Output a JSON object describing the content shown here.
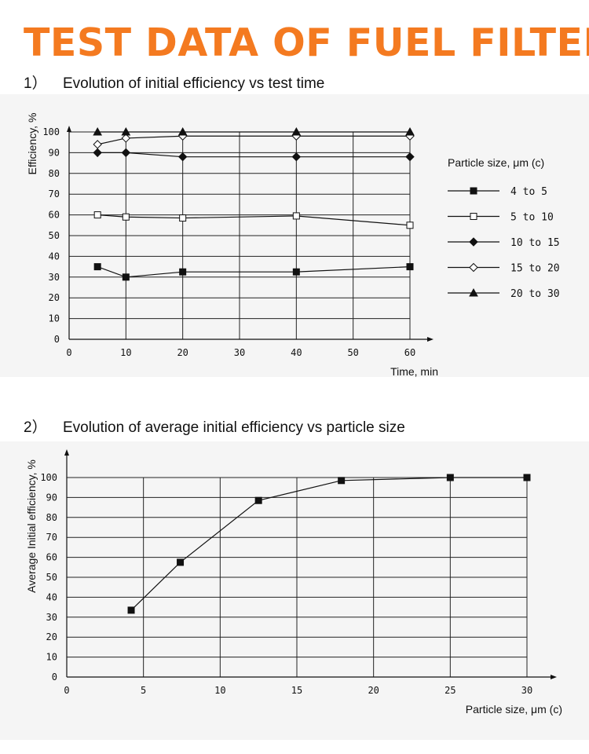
{
  "page": {
    "title": "TEST DATA OF FUEL FILTER",
    "section1": {
      "number": "1）",
      "heading": "Evolution of initial efficiency vs test time"
    },
    "section2": {
      "number": "2）",
      "heading": "Evolution of average initial efficiency vs particle size"
    }
  },
  "colors": {
    "title": "#f47a20",
    "ink": "#111111",
    "panel": "#f5f5f5"
  },
  "chart_data": [
    {
      "type": "line",
      "xlabel": "Time, min",
      "ylabel": "Efficiency, %",
      "xlim": [
        0,
        60
      ],
      "ylim": [
        0,
        100
      ],
      "x_ticks": [
        0,
        10,
        20,
        30,
        40,
        50,
        60
      ],
      "y_ticks": [
        0,
        10,
        20,
        30,
        40,
        50,
        60,
        70,
        80,
        90,
        100
      ],
      "grid": true,
      "legend_title": "Particle size, μm (c)",
      "legend_position": "right",
      "series": [
        {
          "name": "4 to 5",
          "marker": "filled-square",
          "x": [
            5,
            10,
            20,
            40,
            60
          ],
          "y": [
            35,
            30,
            32.5,
            32.5,
            35
          ]
        },
        {
          "name": "5 to 10",
          "marker": "open-square",
          "x": [
            5,
            10,
            20,
            40,
            60
          ],
          "y": [
            60,
            59,
            58.5,
            59.5,
            55
          ]
        },
        {
          "name": "10 to 15",
          "marker": "filled-diamond",
          "x": [
            5,
            10,
            20,
            40,
            60
          ],
          "y": [
            90,
            90,
            88,
            88,
            88
          ]
        },
        {
          "name": "15 to 20",
          "marker": "open-diamond",
          "x": [
            5,
            10,
            20,
            40,
            60
          ],
          "y": [
            94,
            97,
            98,
            98,
            98
          ]
        },
        {
          "name": "20 to 30",
          "marker": "filled-triangle",
          "x": [
            5,
            10,
            20,
            40,
            60
          ],
          "y": [
            100,
            100,
            100,
            100,
            100
          ]
        }
      ]
    },
    {
      "type": "line",
      "xlabel": "Particle size, μm (c)",
      "ylabel": "Average Initial efficiency, %",
      "xlim": [
        0,
        30
      ],
      "ylim": [
        0,
        100
      ],
      "x_ticks": [
        0,
        5,
        10,
        15,
        20,
        25,
        30
      ],
      "y_ticks": [
        0,
        10,
        20,
        30,
        40,
        50,
        60,
        70,
        80,
        90,
        100
      ],
      "grid": true,
      "series": [
        {
          "marker": "filled-square",
          "x": [
            4.2,
            7.4,
            12.5,
            17.9,
            25,
            30
          ],
          "y": [
            33.5,
            57.5,
            88.5,
            98.5,
            100,
            100
          ]
        }
      ]
    }
  ]
}
